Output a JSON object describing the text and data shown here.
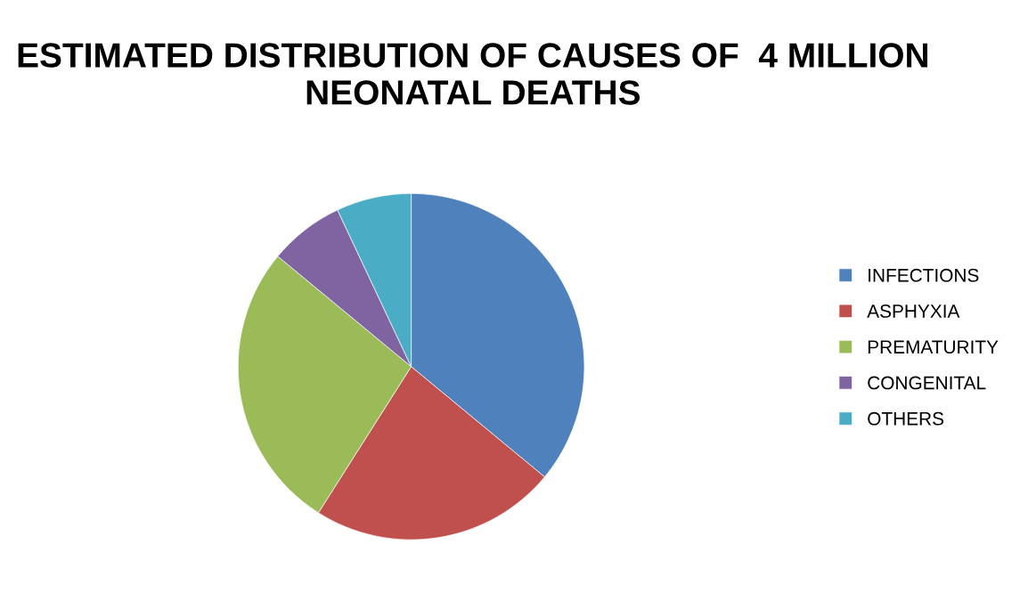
{
  "chart_data": {
    "type": "pie",
    "title": "ESTIMATED DISTRIBUTION OF CAUSES OF  4 MILLION NEONATAL DEATHS",
    "categories": [
      "INFECTIONS",
      "ASPHYXIA",
      "PREMATURITY",
      "CONGENITAL",
      "OTHERS"
    ],
    "values": [
      36,
      23,
      27,
      7,
      7
    ],
    "colors": [
      "#4f81bd",
      "#c0504d",
      "#9bbb59",
      "#8064a2",
      "#4bacc6"
    ],
    "legend": "right"
  }
}
